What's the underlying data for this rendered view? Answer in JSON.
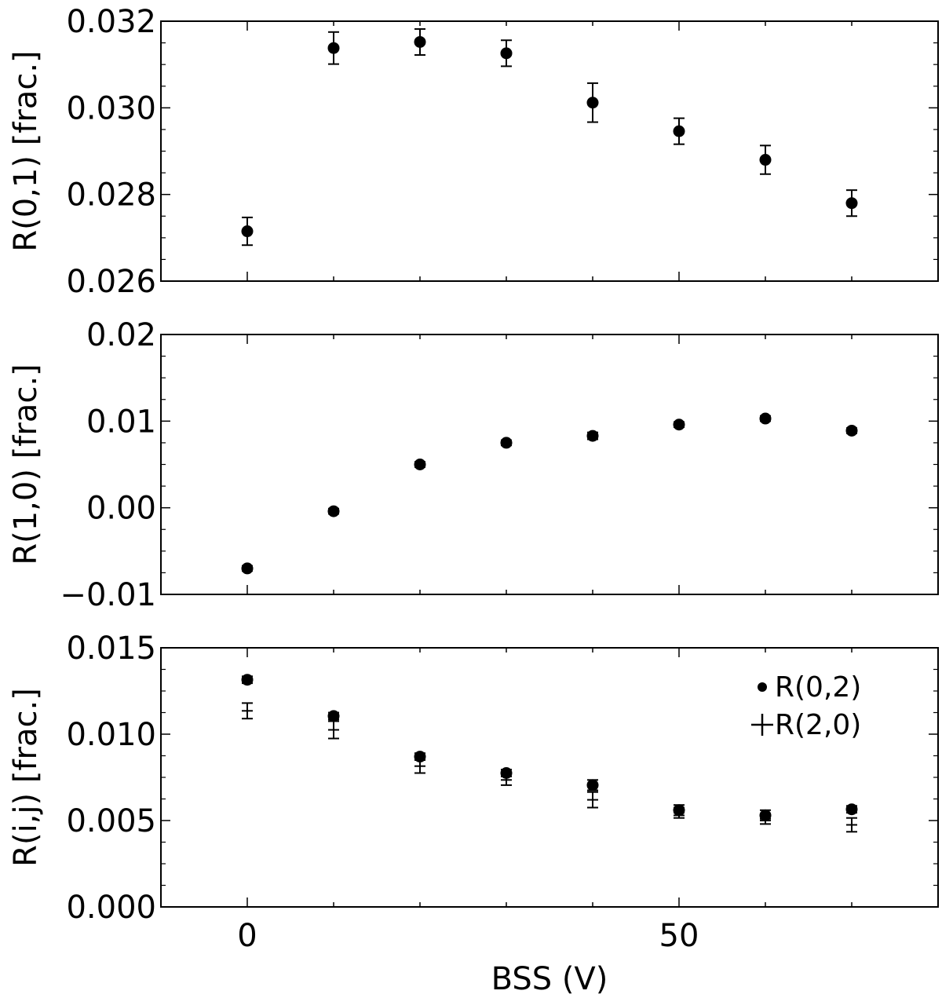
{
  "chart_data": {
    "type": "scatter",
    "xlabel": "BSS (V)",
    "xlim": [
      -10,
      80
    ],
    "xticks": [
      0,
      50
    ],
    "panels": [
      {
        "ylabel": "R(0,1) [frac.]",
        "ylim": [
          0.026,
          0.032
        ],
        "yticks": [
          0.026,
          0.028,
          0.03,
          0.032
        ],
        "ytick_labels": [
          "0.026",
          "0.028",
          "0.030",
          "0.032"
        ],
        "legend": null,
        "series": [
          {
            "marker": "circle",
            "x": [
              0,
              10,
              20,
              30,
              40,
              50,
              60,
              70
            ],
            "y": [
              0.02715,
              0.03138,
              0.03152,
              0.03126,
              0.03012,
              0.02946,
              0.0288,
              0.0278
            ],
            "yerr": [
              0.00032,
              0.00037,
              0.0003,
              0.0003,
              0.00045,
              0.0003,
              0.00033,
              0.0003
            ]
          }
        ]
      },
      {
        "ylabel": "R(1,0) [frac.]",
        "ylim": [
          -0.01,
          0.02
        ],
        "yticks": [
          -0.01,
          0.0,
          0.01,
          0.02
        ],
        "ytick_labels": [
          "−0.01",
          "0.00",
          "0.01",
          "0.02"
        ],
        "legend": null,
        "series": [
          {
            "marker": "circle",
            "x": [
              0,
              10,
              20,
              30,
              40,
              50,
              60,
              70
            ],
            "y": [
              -0.007,
              -0.0004,
              0.005,
              0.0075,
              0.0083,
              0.0096,
              0.0103,
              0.0089
            ],
            "yerr": [
              0.0003,
              0.0003,
              0.0003,
              0.0003,
              0.0004,
              0.0003,
              0.0003,
              0.0003
            ]
          }
        ]
      },
      {
        "ylabel": "R(i,j) [frac.]",
        "ylim": [
          0.0,
          0.015
        ],
        "yticks": [
          0.0,
          0.005,
          0.01,
          0.015
        ],
        "ytick_labels": [
          "0.000",
          "0.005",
          "0.010",
          "0.015"
        ],
        "legend": "upper right",
        "series": [
          {
            "name": "R(0,2)",
            "marker": "circle",
            "x": [
              0,
              10,
              20,
              30,
              40,
              50,
              60,
              70
            ],
            "y": [
              0.01315,
              0.01105,
              0.0087,
              0.00775,
              0.00705,
              0.0056,
              0.0053,
              0.00565
            ],
            "yerr": [
              0.0002,
              0.0002,
              0.0002,
              0.0002,
              0.0003,
              0.0003,
              0.0003,
              0.0002
            ]
          },
          {
            "name": "R(2,0)",
            "marker": "plus",
            "x": [
              0,
              10,
              20,
              30,
              40,
              50,
              60,
              70
            ],
            "y": [
              0.01135,
              0.01025,
              0.00815,
              0.00735,
              0.0062,
              0.00545,
              0.0051,
              0.00475
            ],
            "yerr": [
              0.00045,
              0.0005,
              0.0004,
              0.0003,
              0.00045,
              0.0003,
              0.0003,
              0.0004
            ]
          }
        ]
      }
    ]
  }
}
